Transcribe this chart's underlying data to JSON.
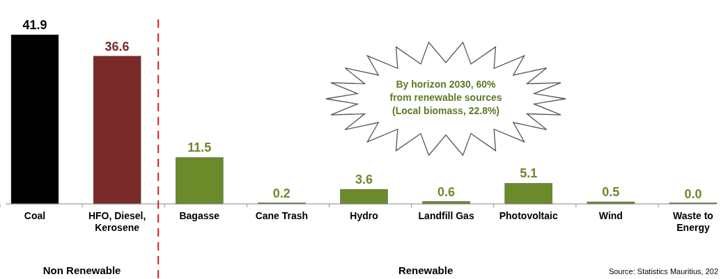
{
  "chart_data": {
    "type": "bar",
    "categories": [
      "Coal",
      "HFO, Diesel, Kerosene",
      "Bagasse",
      "Cane Trash",
      "Hydro",
      "Landfill Gas",
      "Photovoltaic",
      "Wind",
      "Waste to Energy"
    ],
    "values": [
      41.9,
      36.6,
      11.5,
      0.2,
      3.6,
      0.6,
      5.1,
      0.5,
      0.0
    ],
    "colors": [
      "#000000",
      "#7b2a2a",
      "#6b8a2a",
      "#6b8a2a",
      "#6b8a2a",
      "#6b8a2a",
      "#6b8a2a",
      "#6b8a2a",
      "#6b8a2a"
    ],
    "value_labels": [
      "41.9",
      "36.6",
      "11.5",
      "0.2",
      "3.6",
      "0.6",
      "5.1",
      "0.5",
      "0.0"
    ],
    "annotations": [
      "By horizon 2030, 60% from renewable sources (Local biomass, 22.8%)",
      "Non Renewable",
      "Renewable",
      "Source: Statistics Mauritius, 202"
    ]
  }
}
